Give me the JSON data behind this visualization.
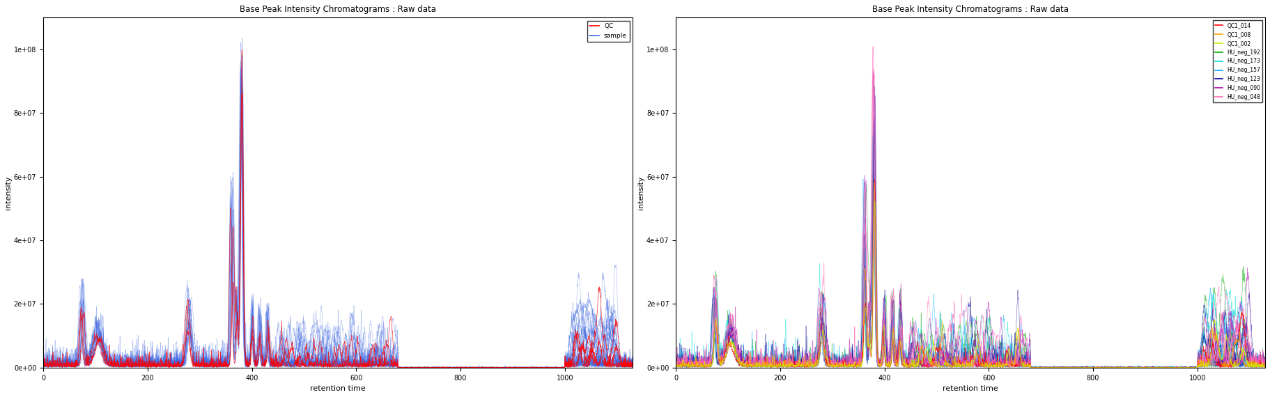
{
  "title": "Base Peak Intensity Chromatograms : Raw data",
  "xlabel": "retention time",
  "ylabel": "intensity",
  "xlim": [
    0,
    1130
  ],
  "ylim": [
    0,
    110000000.0
  ],
  "yticks": [
    0,
    20000000.0,
    40000000.0,
    60000000.0,
    80000000.0,
    100000000.0
  ],
  "ytick_labels": [
    "0e+00",
    "2e+07",
    "4e+07",
    "6e+07",
    "8e+07",
    "1e+08"
  ],
  "xticks": [
    0,
    200,
    400,
    600,
    800,
    1000
  ],
  "legend_left": [
    {
      "label": "QC",
      "color": "#FF0000"
    },
    {
      "label": "sample",
      "color": "#4169E1"
    }
  ],
  "legend_right": [
    {
      "label": "QC1_014",
      "color": "#FF0000"
    },
    {
      "label": "QC1_008",
      "color": "#FFA500"
    },
    {
      "label": "QC1_002",
      "color": "#CCEE00"
    },
    {
      "label": "HU_neg_192",
      "color": "#00AA00"
    },
    {
      "label": "HU_neg_173",
      "color": "#00DDDD"
    },
    {
      "label": "HU_neg_157",
      "color": "#00AAFF"
    },
    {
      "label": "HU_neg_123",
      "color": "#000099"
    },
    {
      "label": "HU_neg_090",
      "color": "#AA00AA"
    },
    {
      "label": "HU_neg_048",
      "color": "#FF69B4"
    }
  ],
  "background_color": "#FFFFFF",
  "n_blue_samples": 18,
  "n_red_qc": 3
}
